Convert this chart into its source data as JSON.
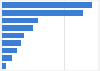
{
  "values": [
    290,
    260,
    115,
    100,
    72,
    62,
    48,
    32,
    13
  ],
  "bar_color": "#3a7fd5",
  "background_color": "#f2f2f2",
  "plot_background": "#ffffff",
  "xlim": [
    0,
    310
  ],
  "bar_height": 0.75,
  "figsize": [
    1.0,
    0.71
  ],
  "dpi": 100
}
